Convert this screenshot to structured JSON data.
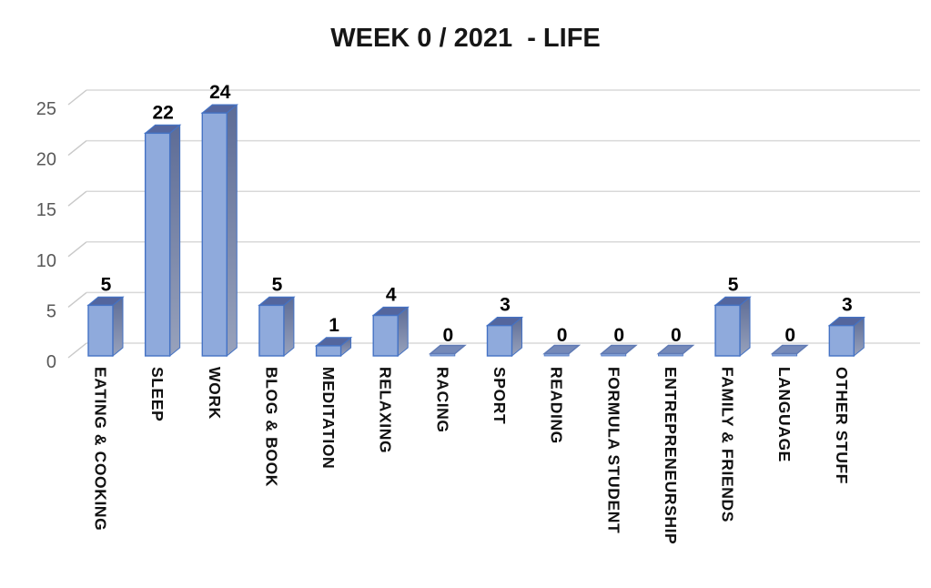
{
  "header": {
    "title": "WEEK 0 / 2021  - LIFE"
  },
  "chart_data": {
    "type": "bar",
    "style": "3d",
    "title": "WEEK 0 / 2021  - LIFE",
    "categories": [
      "EATING & COOKING",
      "SLEEP",
      "WORK",
      "BLOG & BOOK",
      "MEDITATION",
      "RELAXING",
      "RACING",
      "SPORT",
      "READING",
      "FORMULA STUDENT",
      "ENTREPRENEURSHIP",
      "FAMILY & FRIENDS",
      "LANGUAGE",
      "OTHER STUFF"
    ],
    "values": [
      5,
      22,
      24,
      5,
      1,
      4,
      0,
      3,
      0,
      0,
      0,
      5,
      0,
      3
    ],
    "value_labels_shown": true,
    "yticks": [
      0,
      5,
      10,
      15,
      20,
      25
    ],
    "ylim": [
      0,
      25
    ],
    "xlabel": "",
    "ylabel": "",
    "grid": true,
    "legend_position": "none",
    "colors": {
      "bar_front": "#8FAADC",
      "bar_top": "#54669E",
      "bar_side_dark": "#5D6C96",
      "bar_side_light": "#98A2BC",
      "zero_tile_fill": "#7589B8",
      "zero_tile_edge": "#5E79B4",
      "bar_stroke": "#4472C4",
      "gridline": "#D9D9D9",
      "depth_tick": "#C9C9C9",
      "ytick_text": "#595959",
      "value_label_text": "#000000",
      "category_label_text": "#111111",
      "title_text": "#161616"
    }
  }
}
